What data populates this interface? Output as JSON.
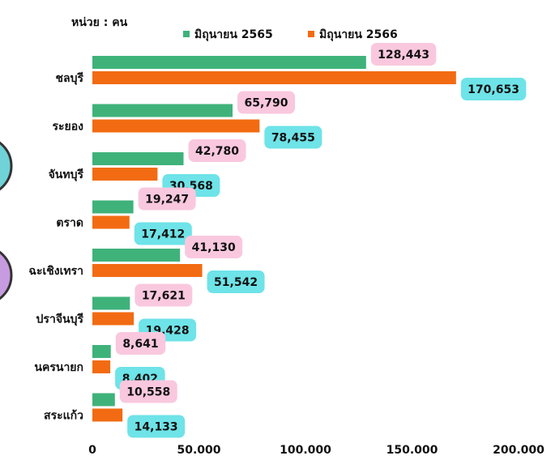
{
  "chart_data": {
    "type": "bar",
    "orientation": "horizontal",
    "subtitle": "หน่วย : คน",
    "categories": [
      "ชลบุรี",
      "ระยอง",
      "จันทบุรี",
      "ตราด",
      "ฉะเชิงเทรา",
      "ปราจีนบุรี",
      "นครนายก",
      "สระแก้ว"
    ],
    "series": [
      {
        "name": "มิถุนายน 2565",
        "color": "#3fb27a",
        "label_color": "#f9c8de",
        "values": [
          128443,
          65790,
          42780,
          19247,
          41130,
          17621,
          8641,
          10558
        ],
        "value_labels": [
          "128,443",
          "65,790",
          "42,780",
          "19,247",
          "41,130",
          "17,621",
          "8,641",
          "10,558"
        ]
      },
      {
        "name": "มิถุนายน 2566",
        "color": "#f26b12",
        "label_color": "#6ee3e8",
        "values": [
          170653,
          78455,
          30568,
          17412,
          51542,
          19428,
          8402,
          14133
        ],
        "value_labels": [
          "170,653",
          "78,455",
          "30,568",
          "17,412",
          "51,542",
          "19,428",
          "8,402",
          "14,133"
        ]
      }
    ],
    "xlim": [
      0,
      200000
    ],
    "xticks": [
      0,
      {
        "value": 50000,
        "label": "50.000"
      },
      {
        "value": 100000,
        "label": "100.000"
      },
      {
        "value": 150000,
        "label": "150.000"
      },
      {
        "value": 200000,
        "label": "200.000"
      }
    ],
    "grid": false
  }
}
